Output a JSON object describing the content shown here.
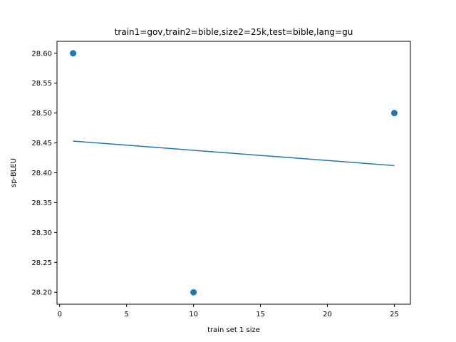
{
  "chart_data": {
    "type": "scatter",
    "title": "train1=gov,train2=bible,size2=25k,test=bible,lang=gu",
    "xlabel": "train set 1 size",
    "ylabel": "sp-BLEU",
    "xlim": [
      -0.2,
      26.2
    ],
    "ylim": [
      28.18,
      28.62
    ],
    "xticks": [
      0,
      5,
      10,
      15,
      20,
      25
    ],
    "xtick_labels": [
      "0",
      "5",
      "10",
      "15",
      "20",
      "25"
    ],
    "yticks": [
      28.2,
      28.25,
      28.3,
      28.35,
      28.4,
      28.45,
      28.5,
      28.55,
      28.6
    ],
    "ytick_labels": [
      "28.20",
      "28.25",
      "28.30",
      "28.35",
      "28.40",
      "28.45",
      "28.50",
      "28.55",
      "28.60"
    ],
    "grid": false,
    "legend": "none",
    "series": [
      {
        "kind": "scatter",
        "color": "#1f77b4",
        "points": [
          {
            "x": 1,
            "y": 28.6
          },
          {
            "x": 10,
            "y": 28.2
          },
          {
            "x": 25,
            "y": 28.5
          }
        ]
      },
      {
        "kind": "line",
        "color": "#1f77b4",
        "points": [
          {
            "x": 1,
            "y": 28.453
          },
          {
            "x": 25,
            "y": 28.412
          }
        ]
      }
    ]
  }
}
